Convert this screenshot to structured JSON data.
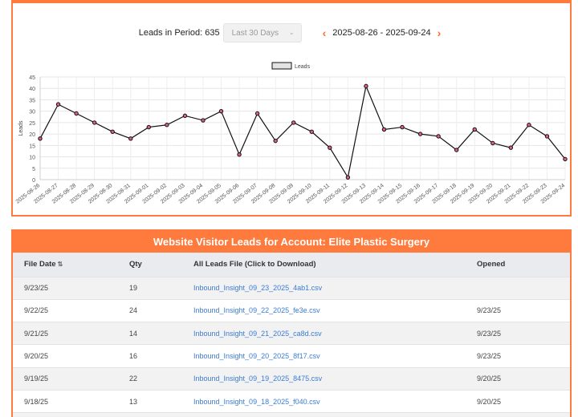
{
  "period": {
    "label": "Leads in Period: 635",
    "select_value": "Last 30 Days",
    "date_range": "2025-08-26 - 2025-09-24",
    "prev_icon": "chevron-left-icon",
    "next_icon": "chevron-right-icon"
  },
  "chart_data": {
    "type": "line",
    "x": [
      "2025-08-26",
      "2025-08-27",
      "2025-08-28",
      "2025-08-29",
      "2025-08-30",
      "2025-08-31",
      "2025-09-01",
      "2025-09-02",
      "2025-09-03",
      "2025-09-04",
      "2025-09-05",
      "2025-09-06",
      "2025-09-07",
      "2025-09-08",
      "2025-09-09",
      "2025-09-10",
      "2025-09-11",
      "2025-09-12",
      "2025-09-13",
      "2025-09-14",
      "2025-09-15",
      "2025-09-16",
      "2025-09-17",
      "2025-09-18",
      "2025-09-19",
      "2025-09-20",
      "2025-09-21",
      "2025-09-22",
      "2025-09-23",
      "2025-09-24"
    ],
    "series": [
      {
        "name": "Leads",
        "values": [
          18,
          33,
          29,
          25,
          21,
          18,
          23,
          24,
          28,
          26,
          30,
          11,
          29,
          17,
          25,
          21,
          14,
          1,
          41,
          22,
          23,
          20,
          19,
          13,
          22,
          16,
          14,
          24,
          19,
          9
        ]
      }
    ],
    "ylabel": "Leads",
    "ylim": [
      0,
      45
    ],
    "yticks": [
      "0",
      "5",
      "10",
      "15",
      "20",
      "25",
      "30",
      "35",
      "40",
      "45"
    ],
    "grid": true,
    "legend": "top-center",
    "line_color": "#111111",
    "point_color": "#e0607e"
  },
  "table": {
    "title": "Website Visitor Leads for Account: Elite Plastic Surgery",
    "columns": [
      "File Date",
      "Qty",
      "All Leads File (Click to Download)",
      "Opened"
    ],
    "sort_icon": "sort-ascending-icon",
    "rows": [
      {
        "date": "9/23/25",
        "qty": "19",
        "file": "Inbound_Insight_09_23_2025_4ab1.csv",
        "opened": ""
      },
      {
        "date": "9/22/25",
        "qty": "24",
        "file": "Inbound_Insight_09_22_2025_fe3e.csv",
        "opened": "9/23/25"
      },
      {
        "date": "9/21/25",
        "qty": "14",
        "file": "Inbound_Insight_09_21_2025_ca8d.csv",
        "opened": "9/23/25"
      },
      {
        "date": "9/20/25",
        "qty": "16",
        "file": "Inbound_Insight_09_20_2025_8f17.csv",
        "opened": "9/23/25"
      },
      {
        "date": "9/19/25",
        "qty": "22",
        "file": "Inbound_Insight_09_19_2025_8475.csv",
        "opened": "9/20/25"
      },
      {
        "date": "9/18/25",
        "qty": "13",
        "file": "Inbound_Insight_09_18_2025_f040.csv",
        "opened": "9/20/25"
      },
      {
        "date": "",
        "qty": "",
        "file": "",
        "opened": ""
      }
    ]
  },
  "colors": {
    "accent": "#ff7a3d",
    "link": "#3a7bd5"
  }
}
